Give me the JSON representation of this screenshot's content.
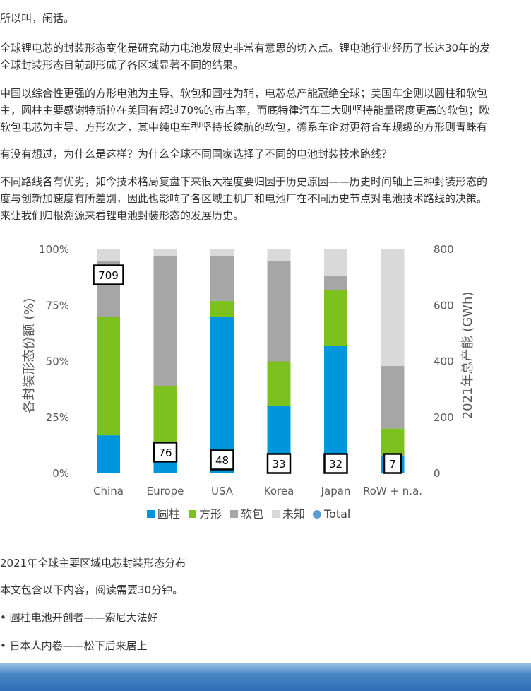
{
  "article": {
    "p1": "所以叫，闲话。",
    "p2": [
      "全球锂电芯的封装形态变化是研究动力电池发展史非常有意思的切入点。锂电池行业经历了长达30年的发",
      "全球封装形态目前却形成了各区域显著不同的结果。"
    ],
    "p3": [
      "中国以综合性更强的方形电池为主导、软包和圆柱为辅，电芯总产能冠绝全球；美国车企则以圆柱和软包",
      "主，圆柱主要感谢特斯拉在美国有超过70%的市占率，而底特律汽车三大则坚持能量密度更高的软包；欧",
      "软包电芯为主导、方形次之，其中纯电车型坚持长续航的软包，德系车企对更符合车规级的方形则青睐有"
    ],
    "p4": "有没有想过，为什么是这样？为什么全球不同国家选择了不同的电池封装技术路线？",
    "p5": [
      "不同路线各有优劣，如今技术格局复盘下来很大程度要归因于历史原因——历史时间轴上三种封装形态的",
      "度与创新加速度有所差别，因此也影响了各区域主机厂和电池厂在不同历史节点对电池技术路线的决策。",
      "来让我们归根溯源来看锂电池封装形态的发展历史。"
    ],
    "caption": "2021年全球主要区域电芯封装形态分布",
    "reading_note": "本文包含以下内容，阅读需要30分钟。",
    "bullets": [
      "• 圆柱电池开创者——索尼大法好",
      "• 日本人内卷——松下后来居上"
    ]
  },
  "chart_data": {
    "type": "bar",
    "stacked": true,
    "categories": [
      "China",
      "Europe",
      "USA",
      "Korea",
      "Japan",
      "RoW + n.a."
    ],
    "series": [
      {
        "name": "圆柱",
        "color": "#0096db",
        "values": [
          17,
          5,
          70,
          30,
          57,
          8
        ]
      },
      {
        "name": "方形",
        "color": "#7dc11f",
        "values": [
          53,
          34,
          7,
          20,
          25,
          12
        ]
      },
      {
        "name": "软包",
        "color": "#a6a6a6",
        "values": [
          25,
          58,
          20,
          45,
          6,
          28
        ]
      },
      {
        "name": "未知",
        "color": "#d9d9d9",
        "values": [
          5,
          3,
          3,
          5,
          12,
          52
        ]
      }
    ],
    "total_series": {
      "name": "Total",
      "color": "#5b9bd5",
      "values": [
        709,
        76,
        48,
        33,
        32,
        7
      ]
    },
    "ylabel": "各封装形态份额 (%)",
    "y2label": "2021年总产能 (GWh)",
    "ylim": [
      0,
      100
    ],
    "y2lim": [
      0,
      800
    ],
    "yticks": [
      "0%",
      "25%",
      "50%",
      "75%",
      "100%"
    ],
    "y2ticks": [
      "0",
      "200",
      "400",
      "600",
      "800"
    ],
    "legend_position": "bottom",
    "grid": false
  }
}
